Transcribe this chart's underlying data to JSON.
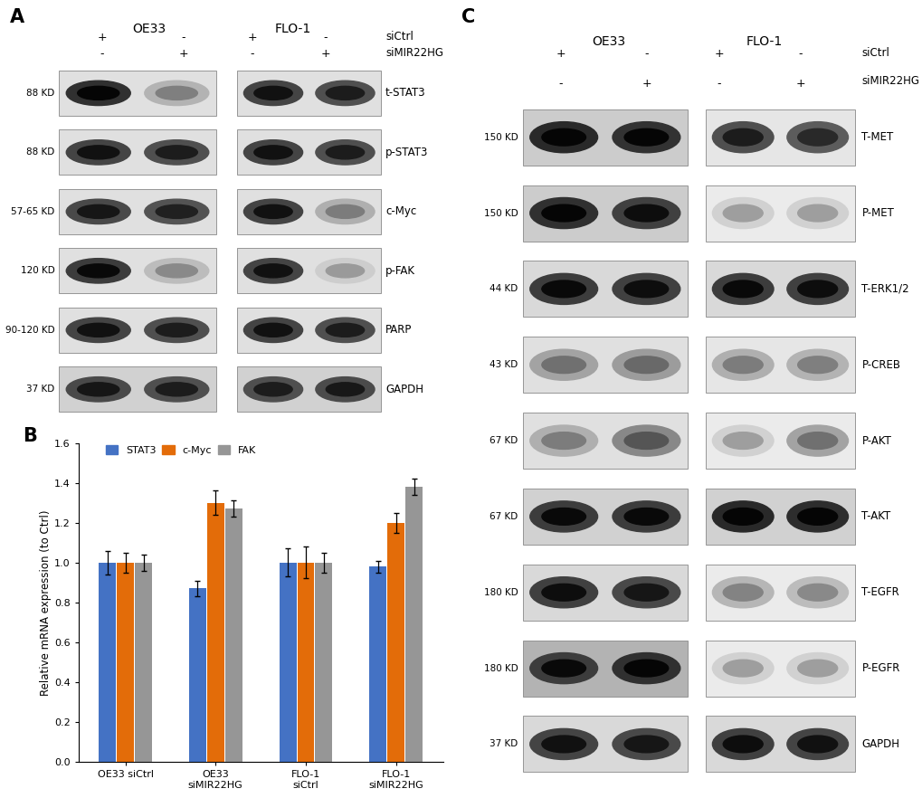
{
  "panel_A": {
    "label": "A",
    "blots": [
      {
        "kd": "88 KD",
        "name": "t-STAT3",
        "int": [
          0.88,
          0.2,
          0.78,
          0.72
        ],
        "bg": [
          0.88,
          0.88,
          0.88,
          0.88
        ]
      },
      {
        "kd": "88 KD",
        "name": "p-STAT3",
        "int": [
          0.78,
          0.72,
          0.78,
          0.72
        ],
        "bg": [
          0.88,
          0.88,
          0.88,
          0.88
        ]
      },
      {
        "kd": "57-65 KD",
        "name": "c-Myc",
        "int": [
          0.75,
          0.7,
          0.78,
          0.22
        ],
        "bg": [
          0.88,
          0.88,
          0.88,
          0.88
        ]
      },
      {
        "kd": "120 KD",
        "name": "p-FAK",
        "int": [
          0.82,
          0.15,
          0.78,
          0.06
        ],
        "bg": [
          0.88,
          0.88,
          0.88,
          0.88
        ]
      },
      {
        "kd": "90-120 KD",
        "name": "PARP",
        "int": [
          0.78,
          0.72,
          0.78,
          0.72
        ],
        "bg": [
          0.88,
          0.88,
          0.88,
          0.88
        ]
      },
      {
        "kd": "37 KD",
        "name": "GAPDH",
        "int": [
          0.75,
          0.72,
          0.72,
          0.74
        ],
        "bg": [
          0.82,
          0.82,
          0.82,
          0.82
        ]
      }
    ]
  },
  "panel_B": {
    "label": "B",
    "groups": [
      "OE33 siCtrl",
      "OE33\nsiMIR22HG",
      "FLO-1\nsiCtrl",
      "FLO-1\nsiMIR22HG"
    ],
    "series": [
      "STAT3",
      "c-Myc",
      "FAK"
    ],
    "colors": [
      "#4472C4",
      "#E36C09",
      "#969696"
    ],
    "values": [
      [
        1.0,
        1.0,
        1.0
      ],
      [
        0.87,
        1.3,
        1.27
      ],
      [
        1.0,
        1.0,
        1.0
      ],
      [
        0.98,
        1.2,
        1.38
      ]
    ],
    "errors": [
      [
        0.06,
        0.05,
        0.04
      ],
      [
        0.04,
        0.06,
        0.04
      ],
      [
        0.07,
        0.08,
        0.05
      ],
      [
        0.03,
        0.05,
        0.04
      ]
    ],
    "ylabel": "Relative mRNA expression (to Ctrl)",
    "ylim": [
      0,
      1.6
    ],
    "yticks": [
      0.0,
      0.2,
      0.4,
      0.6,
      0.8,
      1.0,
      1.2,
      1.4,
      1.6
    ]
  },
  "panel_C": {
    "label": "C",
    "blots": [
      {
        "kd": "150 KD",
        "name": "T-MET",
        "int": [
          0.92,
          0.87,
          0.72,
          0.65
        ],
        "bg1": 0.8,
        "bg2": 0.9
      },
      {
        "kd": "150 KD",
        "name": "P-MET",
        "int": [
          0.88,
          0.8,
          0.04,
          0.04
        ],
        "bg1": 0.8,
        "bg2": 0.92
      },
      {
        "kd": "44 KD",
        "name": "T-ERK1/2",
        "int": [
          0.82,
          0.8,
          0.82,
          0.8
        ],
        "bg1": 0.85,
        "bg2": 0.85
      },
      {
        "kd": "43 KD",
        "name": "P-CREB",
        "int": [
          0.28,
          0.32,
          0.22,
          0.2
        ],
        "bg1": 0.88,
        "bg2": 0.9
      },
      {
        "kd": "67 KD",
        "name": "P-AKT",
        "int": [
          0.22,
          0.42,
          0.04,
          0.28
        ],
        "bg1": 0.88,
        "bg2": 0.92
      },
      {
        "kd": "67 KD",
        "name": "T-AKT",
        "int": [
          0.82,
          0.82,
          0.92,
          0.9
        ],
        "bg1": 0.82,
        "bg2": 0.82
      },
      {
        "kd": "180 KD",
        "name": "T-EGFR",
        "int": [
          0.8,
          0.75,
          0.18,
          0.15
        ],
        "bg1": 0.85,
        "bg2": 0.92
      },
      {
        "kd": "180 KD",
        "name": "P-EGFR",
        "int": [
          0.82,
          0.88,
          0.04,
          0.04
        ],
        "bg1": 0.7,
        "bg2": 0.92
      },
      {
        "kd": "37 KD",
        "name": "GAPDH",
        "int": [
          0.78,
          0.75,
          0.8,
          0.78
        ],
        "bg1": 0.85,
        "bg2": 0.85
      }
    ]
  }
}
